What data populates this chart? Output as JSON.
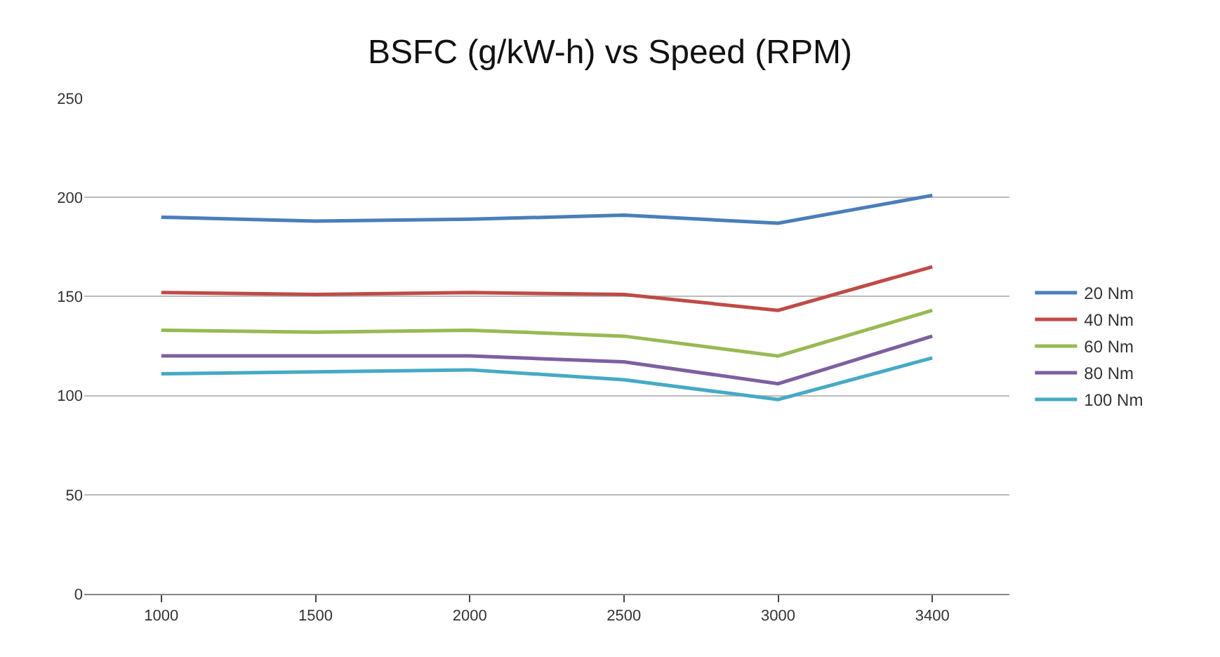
{
  "chart_data": {
    "type": "line",
    "title": "BSFC (g/kW-h) vs Speed (RPM)",
    "categories": [
      "1000",
      "1500",
      "2000",
      "2500",
      "3000",
      "3400"
    ],
    "series": [
      {
        "name": "20 Nm",
        "color": "#4a7ebb",
        "values": [
          190,
          188,
          189,
          191,
          187,
          201
        ]
      },
      {
        "name": "40 Nm",
        "color": "#be4b48",
        "values": [
          152,
          151,
          152,
          151,
          143,
          165
        ]
      },
      {
        "name": "60 Nm",
        "color": "#98b954",
        "values": [
          133,
          132,
          133,
          130,
          120,
          143
        ]
      },
      {
        "name": "80 Nm",
        "color": "#7d60a0",
        "values": [
          120,
          120,
          120,
          117,
          106,
          130
        ]
      },
      {
        "name": "100 Nm",
        "color": "#46aac5",
        "values": [
          111,
          112,
          113,
          108,
          98,
          119
        ]
      }
    ],
    "ylim": [
      0,
      250
    ],
    "yticks": [
      0,
      50,
      100,
      150,
      200,
      250
    ],
    "grid": "y",
    "legend": "right",
    "marker": "none",
    "line_style": "solid"
  }
}
